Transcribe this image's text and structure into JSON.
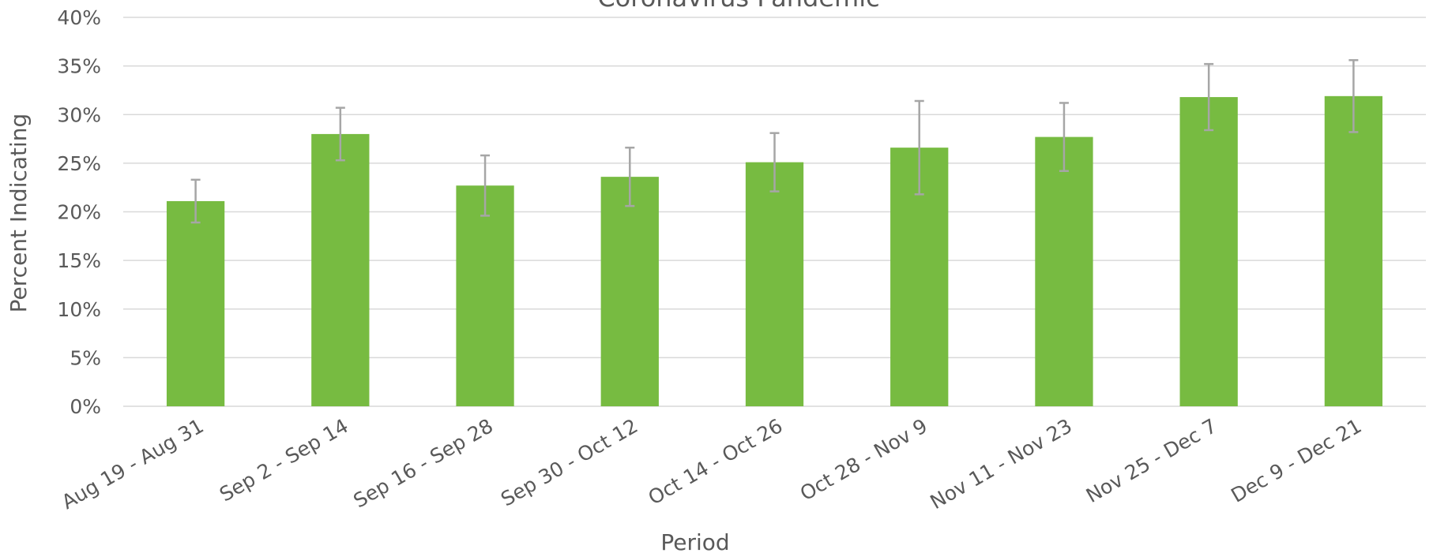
{
  "chart_data": {
    "type": "bar",
    "title": "Coronavirus Pandemic",
    "x_label": "Period",
    "y_label": "Percent Indicating",
    "categories": [
      "Aug 19 - Aug 31",
      "Sep 2 - Sep 14",
      "Sep 16 - Sep 28",
      "Sep 30 - Oct 12",
      "Oct 14 - Oct 26",
      "Oct 28 - Nov 9",
      "Nov 11 - Nov 23",
      "Nov 25 - Dec 7",
      "Dec 9 - Dec 21"
    ],
    "values": [
      21.1,
      28.0,
      22.7,
      23.6,
      25.1,
      26.6,
      27.7,
      31.8,
      31.9
    ],
    "errors": [
      2.2,
      2.7,
      3.1,
      3.0,
      3.0,
      4.8,
      3.5,
      3.4,
      3.7
    ],
    "color": "#77bb41",
    "error_color": "#a6a6a6",
    "ylim": [
      0,
      40
    ],
    "yticks": [
      {
        "value": 0,
        "label": "0%"
      },
      {
        "value": 5,
        "label": "5%"
      },
      {
        "value": 10,
        "label": "10%"
      },
      {
        "value": 15,
        "label": "15%"
      },
      {
        "value": 20,
        "label": "20%"
      },
      {
        "value": 25,
        "label": "25%"
      },
      {
        "value": 30,
        "label": "30%"
      },
      {
        "value": 35,
        "label": "35%"
      },
      {
        "value": 40,
        "label": "40%"
      }
    ],
    "grid": true
  }
}
